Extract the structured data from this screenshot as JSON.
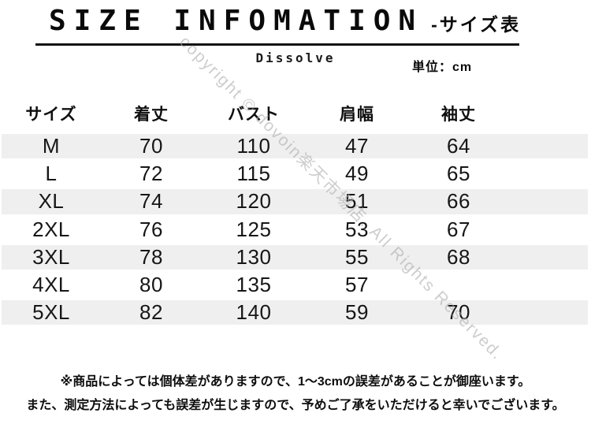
{
  "page": {
    "title": "SIZE INFOMATION",
    "title_suffix": "-サイズ表",
    "brand": "Dissolve",
    "unit_label": "単位：cm"
  },
  "watermark": {
    "text": "copyright © dovoin楽天市場店. All Rights Reserved."
  },
  "size_table": {
    "columns": [
      "サイズ",
      "着丈",
      "バスト",
      "肩幅",
      "袖丈"
    ],
    "rows": [
      [
        "M",
        "70",
        "110",
        "47",
        "64"
      ],
      [
        "L",
        "72",
        "115",
        "49",
        "65"
      ],
      [
        "XL",
        "74",
        "120",
        "51",
        "66"
      ],
      [
        "2XL",
        "76",
        "125",
        "53",
        "67"
      ],
      [
        "3XL",
        "78",
        "130",
        "55",
        "68"
      ],
      [
        "4XL",
        "80",
        "135",
        "57",
        ""
      ],
      [
        "5XL",
        "82",
        "140",
        "59",
        "70"
      ]
    ]
  },
  "notes": {
    "line1": "※商品によっては個体差がありますので、1～3cmの誤差があることが御座います。",
    "line2": "また、測定方法によっても誤差が生じますので、予めご了承をいただけると幸いでございます。"
  },
  "colors": {
    "stripe": "#efefef",
    "text": "#111111",
    "watermark": "#acacac"
  }
}
